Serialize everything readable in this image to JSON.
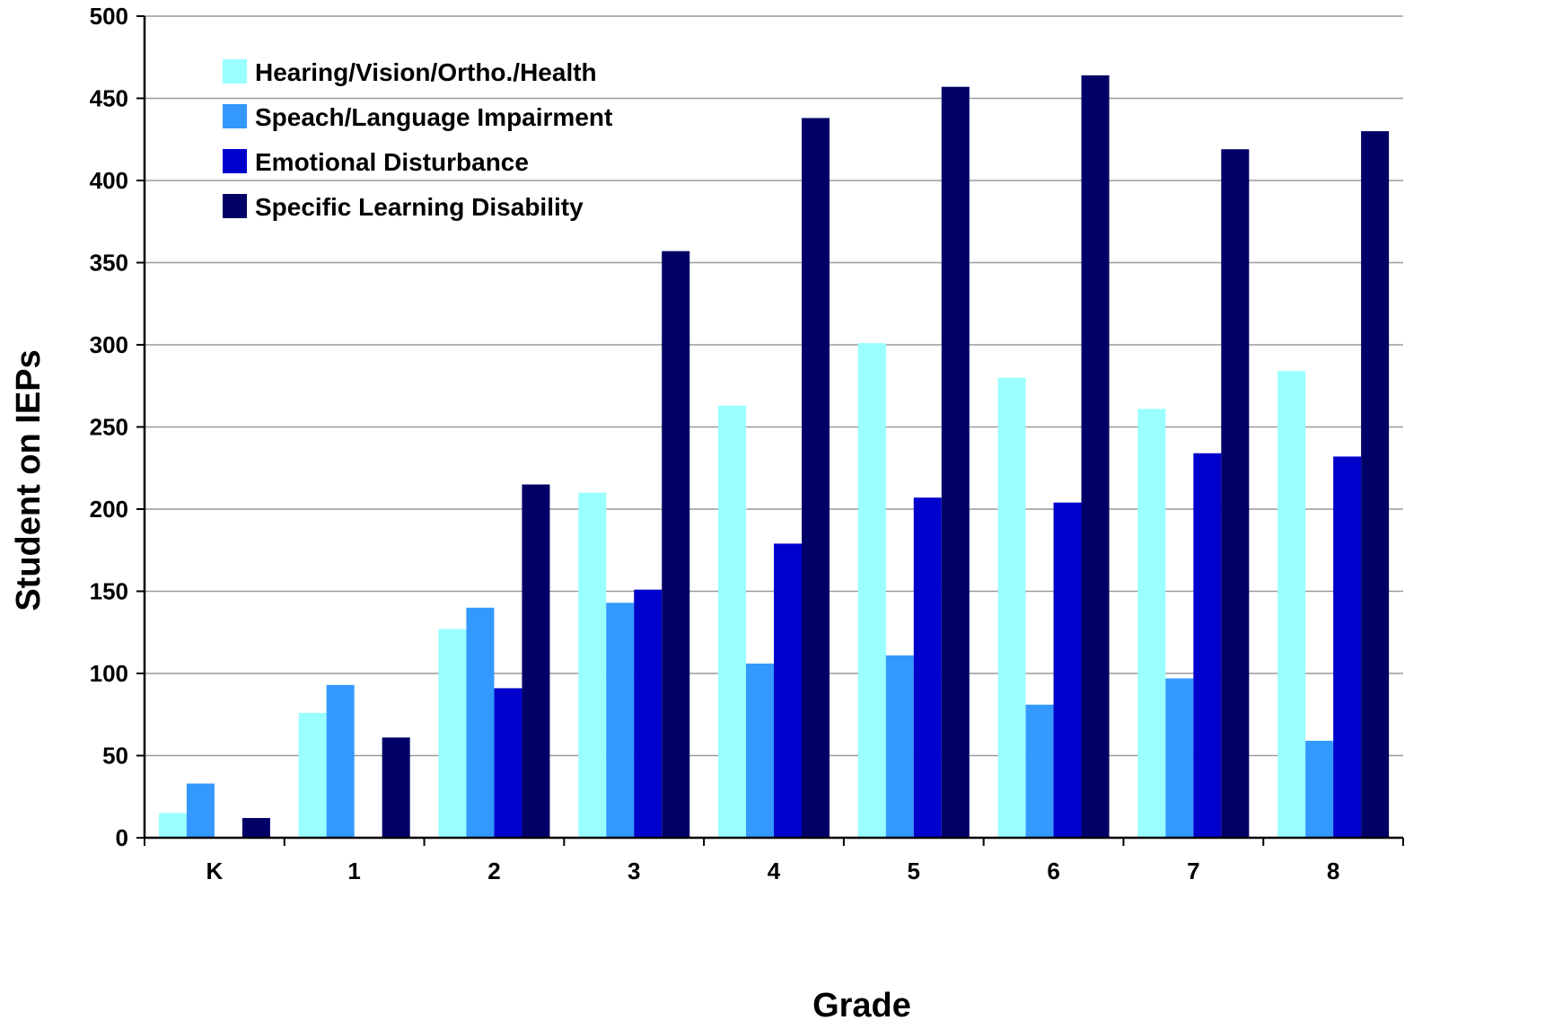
{
  "chart_data": {
    "type": "bar",
    "title": "",
    "xlabel": "Grade",
    "ylabel": "Student on IEPs",
    "ylim": [
      0,
      500
    ],
    "yticks": [
      0,
      50,
      100,
      150,
      200,
      250,
      300,
      350,
      400,
      450,
      500
    ],
    "ytick_labels": [
      "0",
      "50",
      "100",
      "150",
      "200",
      "250",
      "300",
      "350",
      "400",
      "450",
      "500"
    ],
    "grid": true,
    "legend_position": "top-left",
    "categories": [
      "K",
      "1",
      "2",
      "3",
      "4",
      "5",
      "6",
      "7",
      "8"
    ],
    "series": [
      {
        "name": "Hearing/Vision/Ortho./Health",
        "color": "#99FFFF",
        "values": [
          15,
          76,
          127,
          210,
          263,
          301,
          280,
          261,
          284
        ]
      },
      {
        "name": "Speach/Language Impairment",
        "color": "#3399FF",
        "values": [
          33,
          93,
          140,
          143,
          106,
          111,
          81,
          97,
          59
        ]
      },
      {
        "name": "Emotional Disturbance",
        "color": "#0000CC",
        "values": [
          0,
          0,
          91,
          151,
          179,
          207,
          204,
          234,
          232
        ]
      },
      {
        "name": "Specific Learning Disability",
        "color": "#000066",
        "values": [
          12,
          61,
          215,
          357,
          438,
          457,
          464,
          419,
          430
        ]
      }
    ]
  }
}
